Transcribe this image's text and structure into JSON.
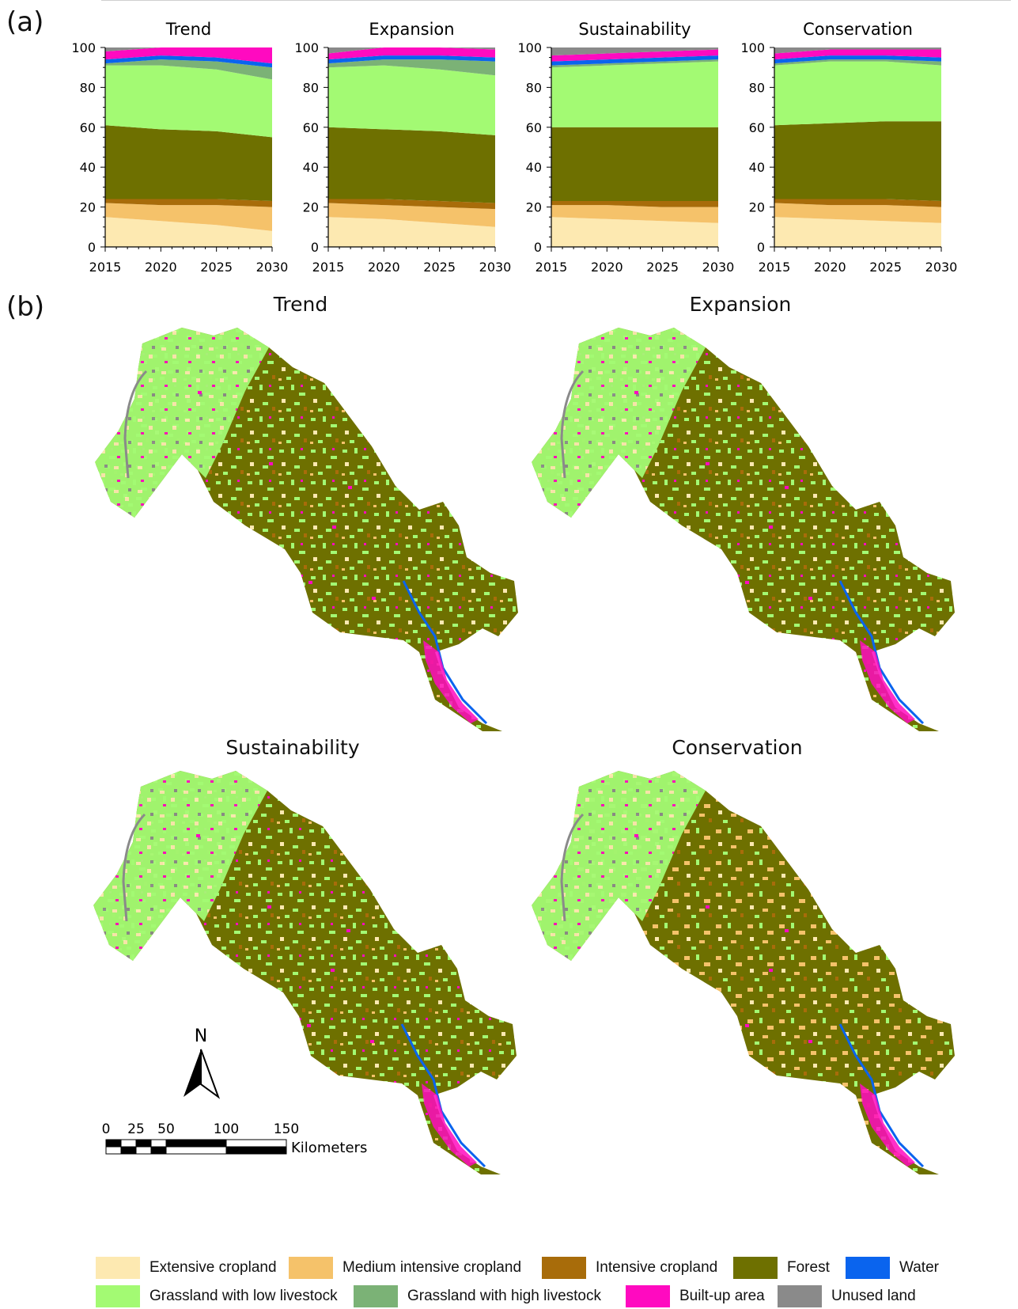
{
  "panels": {
    "a": "(a)",
    "b": "(b)"
  },
  "colors": {
    "extensive": "#fde9b1",
    "medium": "#f5c26a",
    "intensive": "#a86c0a",
    "forest": "#6e7000",
    "grassland_low": "#a3fa73",
    "grassland_high": "#7bb276",
    "water": "#0a64ee",
    "builtup": "#ff0ac0",
    "unused": "#8a8a8a"
  },
  "chart_data": [
    {
      "type": "area",
      "title": "Trend",
      "x": [
        2015,
        2020,
        2025,
        2030
      ],
      "xlim": [
        2015,
        2030
      ],
      "ylim": [
        0,
        100
      ],
      "yticks": [
        0,
        20,
        40,
        60,
        80,
        100
      ],
      "series": [
        {
          "name": "Extensive cropland",
          "color": "extensive",
          "values": [
            15,
            13,
            11,
            8
          ]
        },
        {
          "name": "Medium intensive cropland",
          "color": "medium",
          "values": [
            7,
            8,
            10,
            12
          ]
        },
        {
          "name": "Intensive cropland",
          "color": "intensive",
          "values": [
            2,
            3,
            3,
            3
          ]
        },
        {
          "name": "Forest",
          "color": "forest",
          "values": [
            37,
            35,
            34,
            32
          ]
        },
        {
          "name": "Grassland with low livestock",
          "color": "grassland_low",
          "values": [
            30,
            32,
            31,
            29
          ]
        },
        {
          "name": "Grassland with high livestock",
          "color": "grassland_high",
          "values": [
            1,
            3,
            4,
            6
          ]
        },
        {
          "name": "Water",
          "color": "water",
          "values": [
            2,
            2,
            2,
            2
          ]
        },
        {
          "name": "Built-up area",
          "color": "builtup",
          "values": [
            4,
            4,
            5,
            8
          ]
        },
        {
          "name": "Unused land",
          "color": "unused",
          "values": [
            2,
            0,
            0,
            0
          ]
        }
      ]
    },
    {
      "type": "area",
      "title": "Expansion",
      "x": [
        2015,
        2020,
        2025,
        2030
      ],
      "xlim": [
        2015,
        2030
      ],
      "ylim": [
        0,
        100
      ],
      "yticks": [
        0,
        20,
        40,
        60,
        80,
        100
      ],
      "series": [
        {
          "name": "Extensive cropland",
          "color": "extensive",
          "values": [
            15,
            14,
            12,
            10
          ]
        },
        {
          "name": "Medium intensive cropland",
          "color": "medium",
          "values": [
            7,
            7,
            8,
            9
          ]
        },
        {
          "name": "Intensive cropland",
          "color": "intensive",
          "values": [
            2,
            3,
            3,
            3
          ]
        },
        {
          "name": "Forest",
          "color": "forest",
          "values": [
            36,
            35,
            35,
            34
          ]
        },
        {
          "name": "Grassland with low livestock",
          "color": "grassland_low",
          "values": [
            30,
            32,
            31,
            30
          ]
        },
        {
          "name": "Grassland with high livestock",
          "color": "grassland_high",
          "values": [
            2,
            3,
            5,
            7
          ]
        },
        {
          "name": "Water",
          "color": "water",
          "values": [
            2,
            2,
            2,
            2
          ]
        },
        {
          "name": "Built-up area",
          "color": "builtup",
          "values": [
            3,
            4,
            4,
            4
          ]
        },
        {
          "name": "Unused land",
          "color": "unused",
          "values": [
            3,
            0,
            0,
            1
          ]
        }
      ]
    },
    {
      "type": "area",
      "title": "Sustainability",
      "x": [
        2015,
        2020,
        2025,
        2030
      ],
      "xlim": [
        2015,
        2030
      ],
      "ylim": [
        0,
        100
      ],
      "yticks": [
        0,
        20,
        40,
        60,
        80,
        100
      ],
      "series": [
        {
          "name": "Extensive cropland",
          "color": "extensive",
          "values": [
            15,
            14,
            13,
            12
          ]
        },
        {
          "name": "Medium intensive cropland",
          "color": "medium",
          "values": [
            6,
            7,
            7,
            8
          ]
        },
        {
          "name": "Intensive cropland",
          "color": "intensive",
          "values": [
            2,
            2,
            3,
            3
          ]
        },
        {
          "name": "Forest",
          "color": "forest",
          "values": [
            37,
            37,
            37,
            37
          ]
        },
        {
          "name": "Grassland with low livestock",
          "color": "grassland_low",
          "values": [
            30,
            31,
            32,
            33
          ]
        },
        {
          "name": "Grassland with high livestock",
          "color": "grassland_high",
          "values": [
            1,
            1,
            1,
            1
          ]
        },
        {
          "name": "Water",
          "color": "water",
          "values": [
            2,
            2,
            2,
            2
          ]
        },
        {
          "name": "Built-up area",
          "color": "builtup",
          "values": [
            3,
            3,
            3,
            3
          ]
        },
        {
          "name": "Unused land",
          "color": "unused",
          "values": [
            4,
            3,
            2,
            1
          ]
        }
      ]
    },
    {
      "type": "area",
      "title": "Conservation",
      "x": [
        2015,
        2020,
        2025,
        2030
      ],
      "xlim": [
        2015,
        2030
      ],
      "ylim": [
        0,
        100
      ],
      "yticks": [
        0,
        20,
        40,
        60,
        80,
        100
      ],
      "series": [
        {
          "name": "Extensive cropland",
          "color": "extensive",
          "values": [
            15,
            14,
            13,
            12
          ]
        },
        {
          "name": "Medium intensive cropland",
          "color": "medium",
          "values": [
            7,
            7,
            8,
            8
          ]
        },
        {
          "name": "Intensive cropland",
          "color": "intensive",
          "values": [
            2,
            3,
            3,
            3
          ]
        },
        {
          "name": "Forest",
          "color": "forest",
          "values": [
            37,
            38,
            39,
            40
          ]
        },
        {
          "name": "Grassland with low livestock",
          "color": "grassland_low",
          "values": [
            30,
            31,
            30,
            28
          ]
        },
        {
          "name": "Grassland with high livestock",
          "color": "grassland_high",
          "values": [
            1,
            1,
            1,
            2
          ]
        },
        {
          "name": "Water",
          "color": "water",
          "values": [
            2,
            2,
            2,
            2
          ]
        },
        {
          "name": "Built-up area",
          "color": "builtup",
          "values": [
            3,
            3,
            3,
            4
          ]
        },
        {
          "name": "Unused land",
          "color": "unused",
          "values": [
            3,
            1,
            1,
            1
          ]
        }
      ]
    }
  ],
  "maps": [
    "Trend",
    "Expansion",
    "Sustainability",
    "Conservation"
  ],
  "scale": {
    "ticks": [
      "0",
      "25",
      "50",
      "100",
      "150"
    ],
    "unit": "Kilometers",
    "north": "N"
  },
  "legend": [
    "Extensive cropland",
    "Medium intensive cropland",
    "Intensive cropland",
    "Forest",
    "Water",
    "Grassland with low livestock",
    "Grassland with high livestock",
    "Built-up area",
    "Unused land"
  ]
}
